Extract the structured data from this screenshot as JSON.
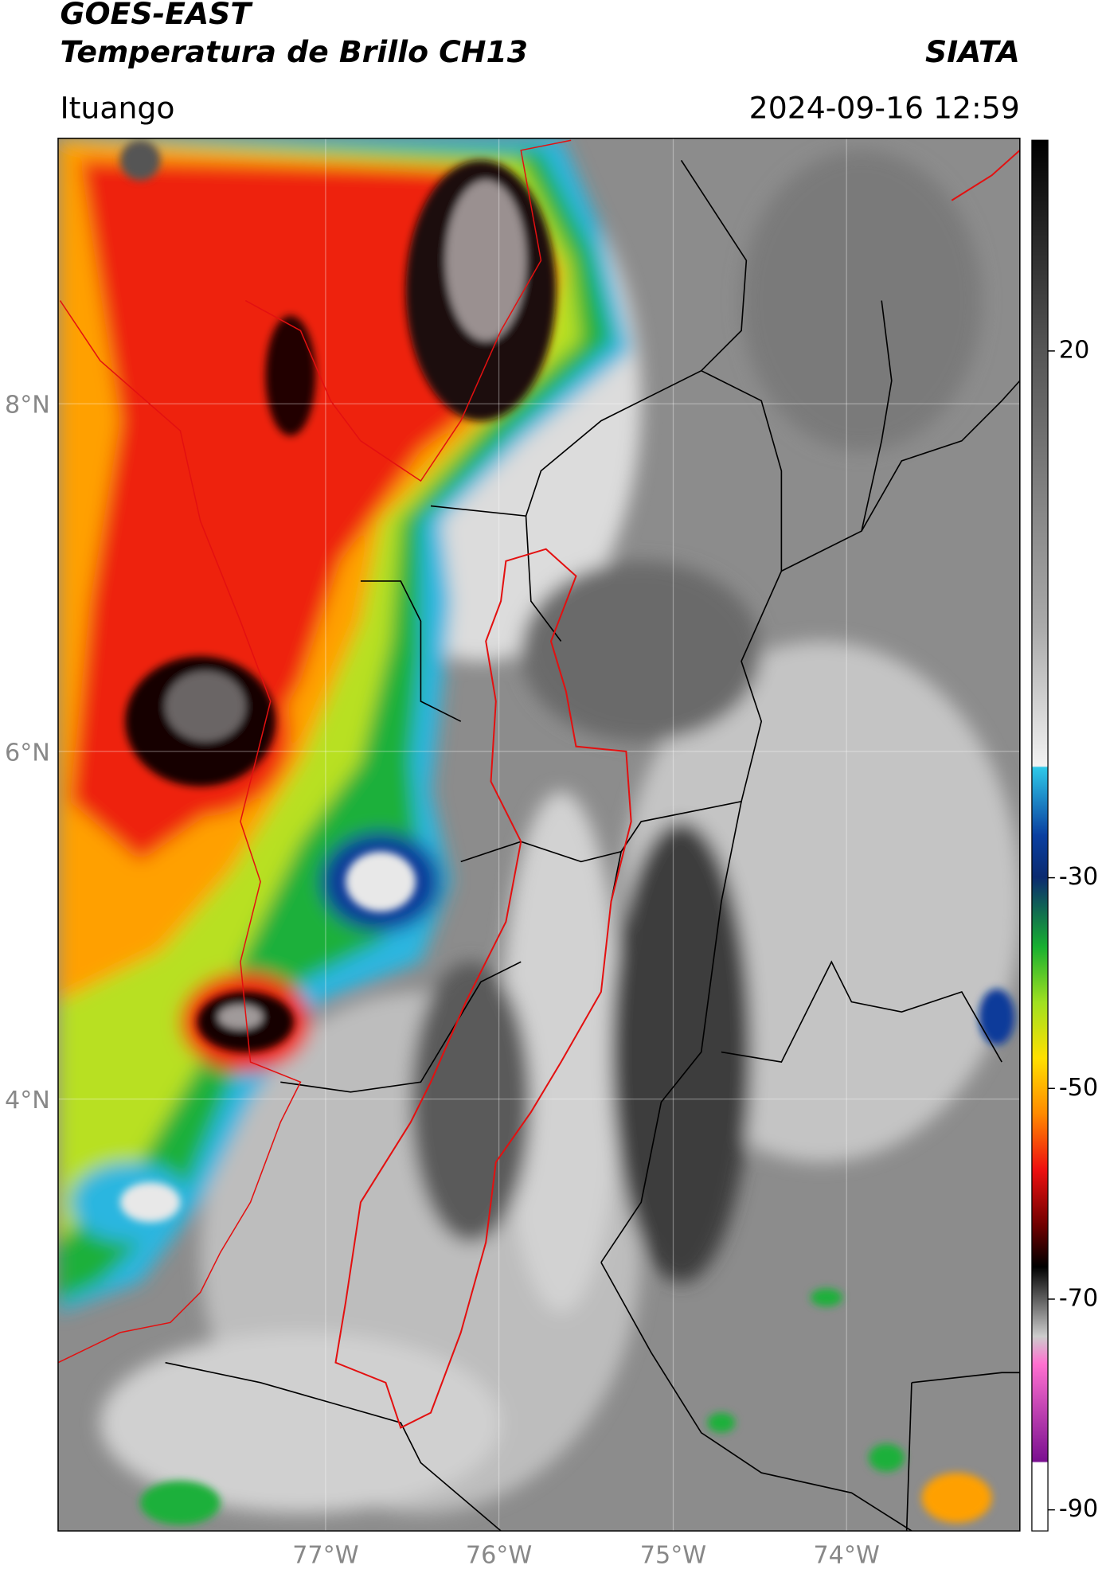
{
  "header": {
    "satellite": "GOES-EAST",
    "product": "Temperatura de Brillo CH13",
    "source": "SIATA",
    "region": "Ituango",
    "timestamp": "2024-09-16 12:59"
  },
  "map": {
    "latitude_labels": [
      "8°N",
      "6°N",
      "4°N"
    ],
    "longitude_labels": [
      "77°W",
      "76°W",
      "75°W",
      "74°W"
    ]
  },
  "colorbar": {
    "range": [
      -92,
      40
    ],
    "ticks": [
      20,
      -30,
      -50,
      -70,
      -90
    ]
  }
}
